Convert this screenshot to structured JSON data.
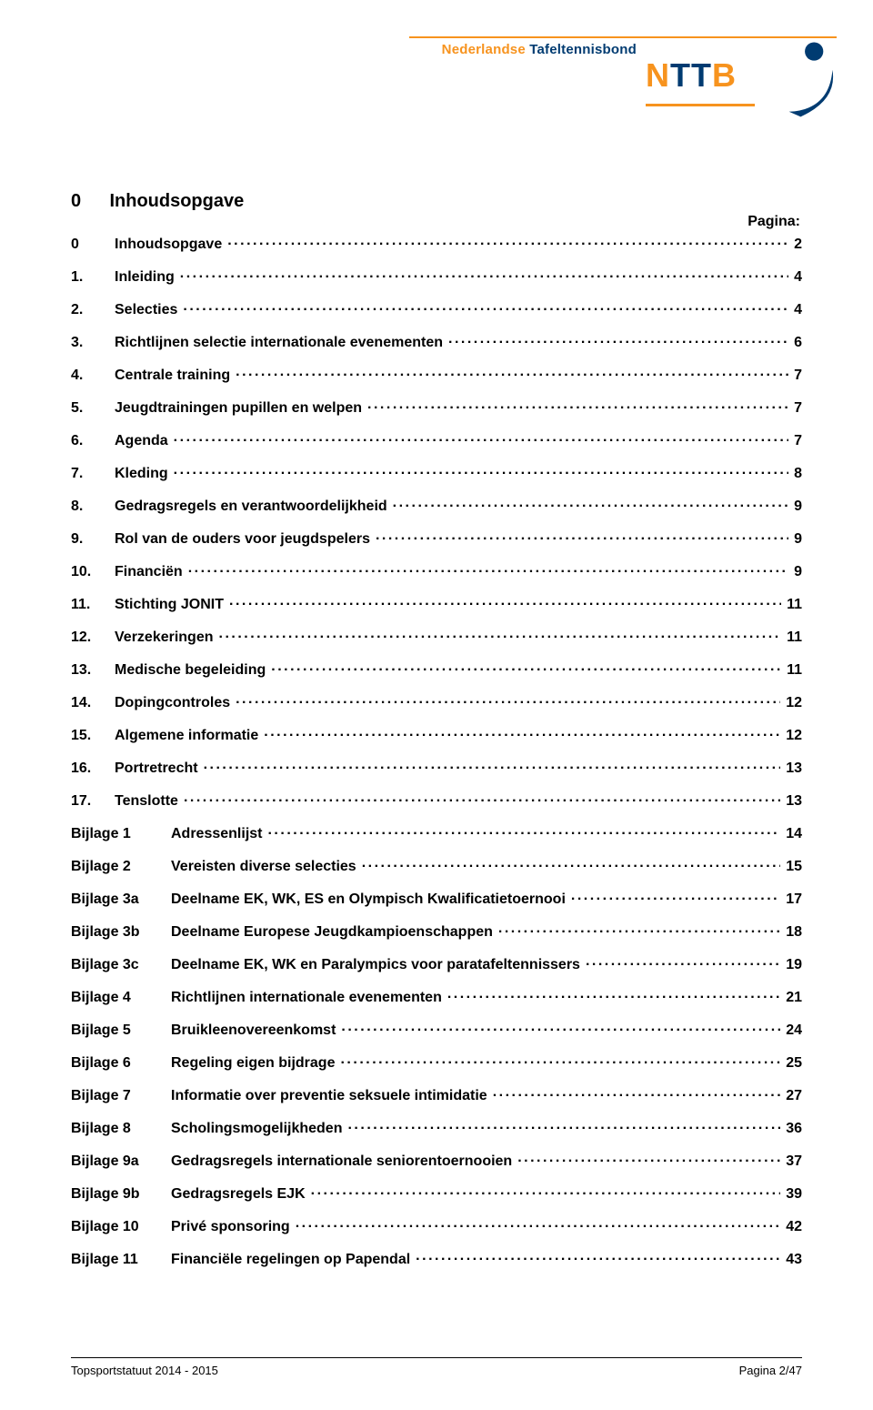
{
  "colors": {
    "orange": "#f7931e",
    "blue": "#003b71",
    "text": "#000000",
    "background": "#ffffff"
  },
  "typography": {
    "body_family": "Arial",
    "title_size_pt": 20,
    "line_size_pt": 16,
    "footer_size_pt": 13,
    "weight": "bold"
  },
  "banner": {
    "text_nederlandse": "Nederlandse ",
    "text_tafeltennisbond": "Tafeltennisbond",
    "logo_n": "N",
    "logo_tt": "TT",
    "logo_b": "B"
  },
  "heading": {
    "num": "0",
    "title": "Inhoudsopgave",
    "pagina_label": "Pagina:"
  },
  "toc": {
    "numbered": [
      {
        "num": "0",
        "label": "Inhoudsopgave",
        "page": "2"
      },
      {
        "num": "1.",
        "label": "Inleiding",
        "page": "4"
      },
      {
        "num": "2.",
        "label": "Selecties",
        "page": "4"
      },
      {
        "num": "3.",
        "label": "Richtlijnen selectie internationale evenementen",
        "page": "6"
      },
      {
        "num": "4.",
        "label": "Centrale training",
        "page": "7"
      },
      {
        "num": "5.",
        "label": "Jeugdtrainingen pupillen en welpen",
        "page": "7"
      },
      {
        "num": "6.",
        "label": "Agenda",
        "page": "7"
      },
      {
        "num": "7.",
        "label": "Kleding",
        "page": "8"
      },
      {
        "num": "8.",
        "label": "Gedragsregels en verantwoordelijkheid",
        "page": "9"
      },
      {
        "num": "9.",
        "label": "Rol van de ouders voor jeugdspelers",
        "page": "9"
      },
      {
        "num": "10.",
        "label": "Financiën",
        "page": "9"
      },
      {
        "num": "11.",
        "label": "Stichting JONIT",
        "page": "11"
      },
      {
        "num": "12.",
        "label": "Verzekeringen",
        "page": "11"
      },
      {
        "num": "13.",
        "label": "Medische begeleiding",
        "page": "11"
      },
      {
        "num": "14.",
        "label": "Dopingcontroles",
        "page": "12"
      },
      {
        "num": "15.",
        "label": "Algemene informatie",
        "page": "12"
      },
      {
        "num": "16.",
        "label": "Portretrecht",
        "page": "13"
      },
      {
        "num": "17.",
        "label": "Tenslotte",
        "page": "13"
      }
    ],
    "bijlagen": [
      {
        "prefix": "Bijlage 1",
        "label": "Adressenlijst",
        "page": "14"
      },
      {
        "prefix": "Bijlage 2",
        "label": "Vereisten diverse selecties",
        "page": "15"
      },
      {
        "prefix": "Bijlage 3a",
        "label": "Deelname EK, WK, ES en Olympisch Kwalificatietoernooi",
        "page": "17"
      },
      {
        "prefix": "Bijlage 3b",
        "label": "Deelname Europese Jeugdkampioenschappen",
        "page": "18"
      },
      {
        "prefix": "Bijlage 3c",
        "label": "Deelname EK, WK en Paralympics voor paratafeltennissers",
        "page": "19"
      },
      {
        "prefix": "Bijlage 4",
        "label": "Richtlijnen internationale evenementen",
        "page": "21"
      },
      {
        "prefix": "Bijlage 5",
        "label": "Bruikleenovereenkomst",
        "page": "24"
      },
      {
        "prefix": "Bijlage 6",
        "label": "Regeling eigen bijdrage",
        "page": "25"
      },
      {
        "prefix": "Bijlage 7",
        "label": "Informatie over preventie seksuele intimidatie",
        "page": "27"
      },
      {
        "prefix": "Bijlage 8",
        "label": "Scholingsmogelijkheden",
        "page": "36"
      },
      {
        "prefix": "Bijlage 9a",
        "label": "Gedragsregels internationale seniorentoernooien",
        "page": "37"
      },
      {
        "prefix": "Bijlage 9b",
        "label": "Gedragsregels EJK",
        "page": "39"
      },
      {
        "prefix": "Bijlage 10",
        "label": "Privé sponsoring",
        "page": "42"
      },
      {
        "prefix": "Bijlage 11",
        "label": "Financiële regelingen op Papendal",
        "page": "43"
      }
    ]
  },
  "footer": {
    "left": "Topsportstatuut 2014 - 2015",
    "right": "Pagina 2/47"
  }
}
